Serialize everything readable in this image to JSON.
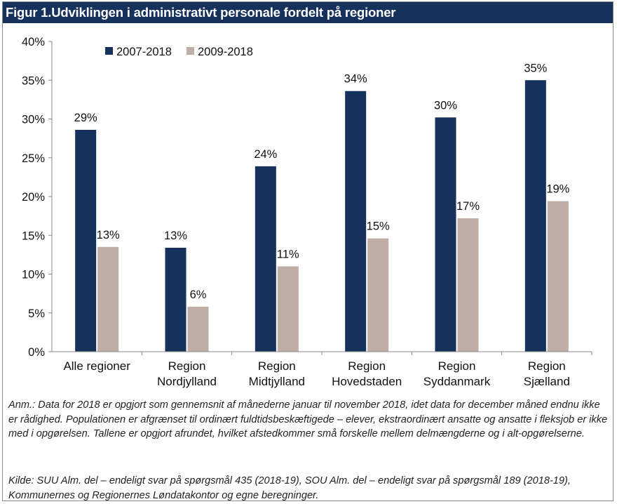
{
  "figure": {
    "title": "Figur 1.Udviklingen i administrativt personale fordelt på regioner",
    "note": "Anm.: Data for 2018 er opgjort som gennemsnit af månederne januar til november 2018, idet data for december måned endnu ikke er rådighed. Populationen er afgrænset til ordinært fuldtidsbeskæftigede – elever, ekstraordinært ansatte og ansatte i fleksjob er ikke med i opgørelsen. Tallene er opgjort afrundet, hvilket afstedkommer små forskelle mellem delmængderne og i alt-opgørelserne.",
    "source": "Kilde: SUU Alm. del – endeligt svar på spørgsmål 435 (2018-19), SOU Alm. del – endeligt svar på spørgsmål 189 (2018-19), Kommunernes og Regionernes Løndatakontor og egne beregninger."
  },
  "chart_data": {
    "type": "bar",
    "title": "Udviklingen i administrativt personale fordelt på regioner",
    "categories": [
      [
        "Alle regioner"
      ],
      [
        "Region",
        "Nordjylland"
      ],
      [
        "Region",
        "Midtjylland"
      ],
      [
        "Region",
        "Hovedstaden"
      ],
      [
        "Region",
        "Syddanmark"
      ],
      [
        "Region",
        "Sjælland"
      ]
    ],
    "series": [
      {
        "name": "2007-2018",
        "color": "#16325c",
        "values": [
          28.6,
          13.4,
          23.9,
          33.6,
          30.2,
          35.0
        ],
        "labels": [
          "29%",
          "13%",
          "24%",
          "34%",
          "30%",
          "35%"
        ]
      },
      {
        "name": "2009-2018",
        "color": "#bfaea5",
        "values": [
          13.5,
          5.8,
          11.0,
          14.6,
          17.2,
          19.4
        ],
        "labels": [
          "13%",
          "6%",
          "11%",
          "15%",
          "17%",
          "19%"
        ]
      }
    ],
    "yticks": [
      0,
      5,
      10,
      15,
      20,
      25,
      30,
      35,
      40
    ],
    "ytick_labels": [
      "0%",
      "5%",
      "10%",
      "15%",
      "20%",
      "25%",
      "30%",
      "35%",
      "40%"
    ],
    "ylim": [
      0,
      40
    ],
    "xlabel": "",
    "ylabel": "",
    "legend": "top-left",
    "grid": false
  }
}
